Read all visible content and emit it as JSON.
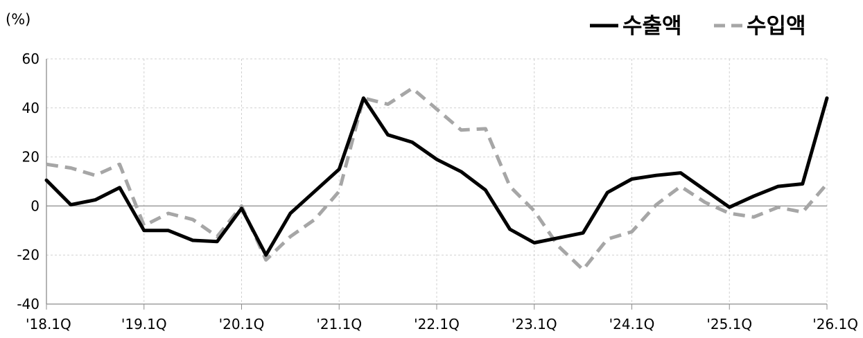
{
  "chart_data": {
    "type": "line",
    "unit_label": "(%)",
    "ylim": [
      -40,
      60
    ],
    "yticks": [
      60,
      40,
      20,
      0,
      -20,
      -40
    ],
    "ytick_labels": [
      "60",
      "40",
      "20",
      "0",
      "-20",
      "-40"
    ],
    "grid": true,
    "legend_position": "top-right",
    "x": [
      "'18.1Q",
      "'18.2Q",
      "'18.3Q",
      "'18.4Q",
      "'19.1Q",
      "'19.2Q",
      "'19.3Q",
      "'19.4Q",
      "'20.1Q",
      "'20.2Q",
      "'20.3Q",
      "'20.4Q",
      "'21.1Q",
      "'21.2Q",
      "'21.3Q",
      "'21.4Q",
      "'22.1Q",
      "'22.2Q",
      "'22.3Q",
      "'22.4Q",
      "'23.1Q",
      "'23.2Q",
      "'23.3Q",
      "'23.4Q",
      "'24.1Q",
      "'24.2Q",
      "'24.3Q",
      "'24.4Q",
      "'25.1Q",
      "'25.2Q",
      "'25.3Q",
      "'25.4Q",
      "'26.1Q"
    ],
    "xtick_labels": [
      "'18.1Q",
      "'19.1Q",
      "'20.1Q",
      "'21.1Q",
      "'22.1Q",
      "'23.1Q",
      "'24.1Q",
      "'25.1Q",
      "'26.1Q"
    ],
    "series": [
      {
        "name": "수출액",
        "color": "#000000",
        "style": "solid",
        "values": [
          10.5,
          0.5,
          2.5,
          7.5,
          -10,
          -10,
          -14,
          -14.5,
          -1,
          -20,
          -3,
          6,
          15,
          44,
          29,
          26,
          19,
          14,
          6.5,
          -9.5,
          -15,
          -13,
          -11,
          5.5,
          11,
          12.5,
          13.5,
          6.5,
          -0.5,
          4,
          8,
          9,
          44
        ]
      },
      {
        "name": "수입액",
        "color": "#a6a6a6",
        "style": "dashed",
        "values": [
          17,
          15.5,
          12.5,
          17,
          -8,
          -3,
          -5.5,
          -12.5,
          0,
          -22,
          -12.5,
          -5.5,
          6,
          44,
          41.5,
          48,
          39.5,
          31,
          31.5,
          8,
          -2,
          -16.5,
          -26,
          -13.5,
          -10.5,
          0.5,
          8,
          1.5,
          -3,
          -4.5,
          -0.5,
          -2.5,
          9
        ]
      }
    ]
  }
}
